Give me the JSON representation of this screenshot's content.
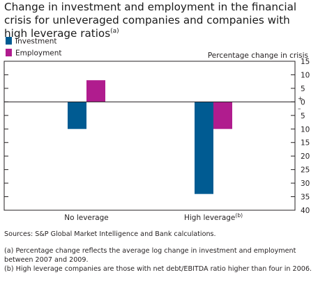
{
  "title": {
    "text": "Change in investment and employment in the financial crisis for unleveraged companies and companies with high leverage ratios",
    "footnote_mark": "(a)"
  },
  "chart_data": {
    "type": "bar",
    "categories": [
      "No leverage",
      "High leverage"
    ],
    "category_footnote_marks": [
      "",
      "(b)"
    ],
    "series": [
      {
        "name": "Investment",
        "values": [
          -10,
          -34
        ],
        "color": "#005b92"
      },
      {
        "name": "Employment",
        "values": [
          8,
          -10
        ],
        "color": "#b01c8e"
      }
    ],
    "ylabel": "Percentage change in crisis",
    "ylim": [
      -40,
      15
    ],
    "yticks": [
      15,
      10,
      5,
      0,
      -5,
      -10,
      -15,
      -20,
      -25,
      -30,
      -35,
      -40
    ],
    "ytick_labels": [
      "15",
      "10",
      "5",
      "0",
      "5",
      "10",
      "15",
      "20",
      "25",
      "30",
      "35",
      "40"
    ],
    "plus_label": "+",
    "minus_label": "–",
    "legend_position": "top-left",
    "grid": false
  },
  "sources": "Sources: S&P Global Market Intelligence and Bank calculations.",
  "footnotes": [
    {
      "mark": "(a)",
      "text": "Percentage change reflects the average log change in investment and employment between 2007 and 2009."
    },
    {
      "mark": "(b)",
      "text": "High leverage companies are those with net debt/EBITDA ratio higher than four in 2006."
    }
  ]
}
